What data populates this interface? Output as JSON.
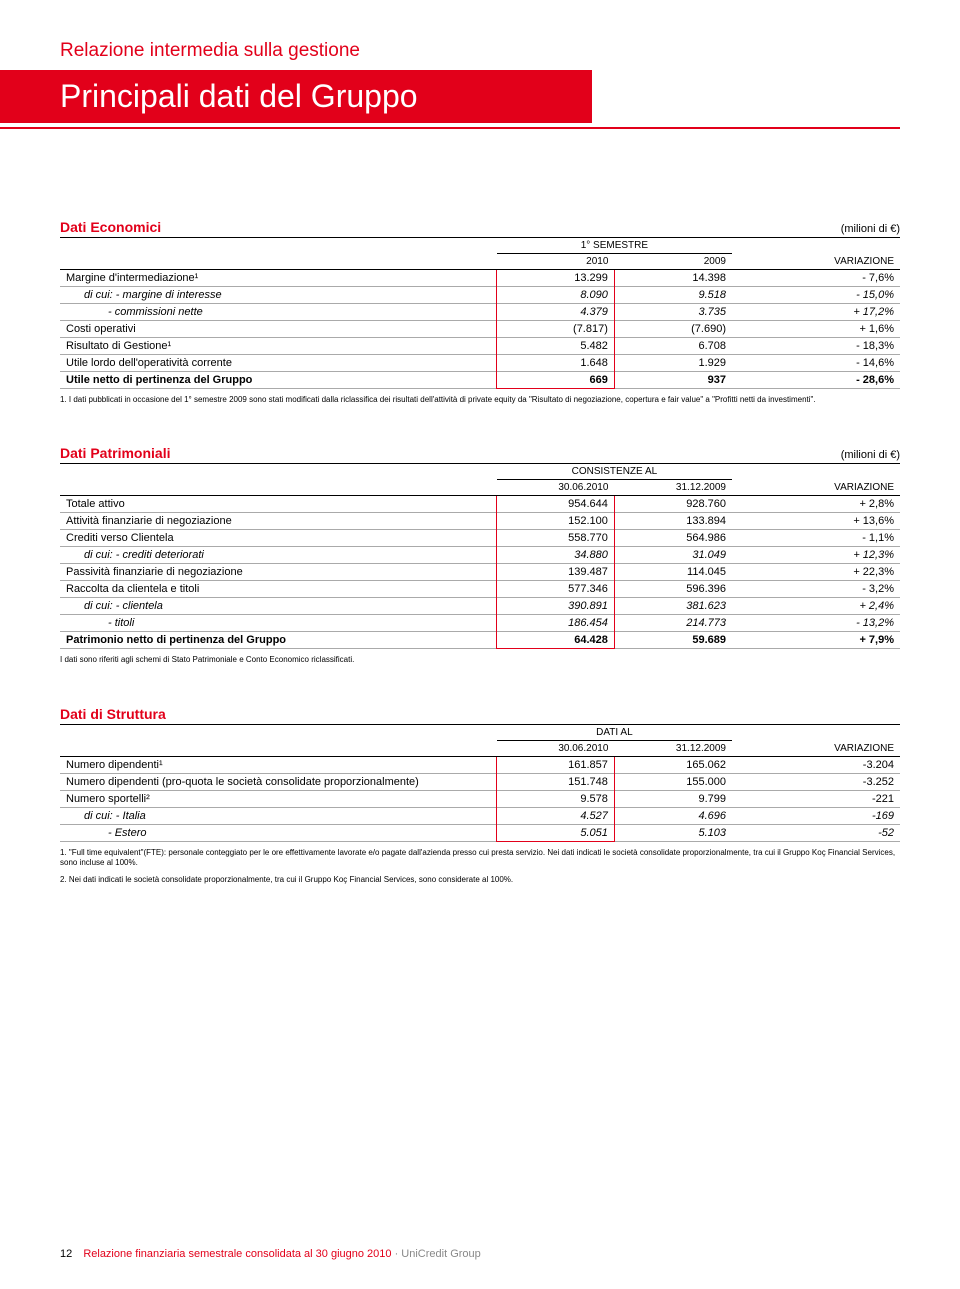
{
  "header": {
    "report_type": "Relazione intermedia sulla gestione",
    "main_title": "Principali dati del Gruppo"
  },
  "tables": {
    "economici": {
      "title": "Dati Economici",
      "unit": "(milioni di €)",
      "super_header": "1° SEMESTRE",
      "cols": [
        "2010",
        "2009",
        "VARIAZIONE"
      ],
      "rows": [
        {
          "label": "Margine d'intermediazione¹",
          "v": [
            "13.299",
            "14.398",
            "- 7,6%"
          ],
          "box": "first"
        },
        {
          "label": "di cui: - margine di interesse",
          "v": [
            "8.090",
            "9.518",
            "- 15,0%"
          ],
          "italic": true,
          "indent": 1
        },
        {
          "label": "- commissioni nette",
          "v": [
            "4.379",
            "3.735",
            "+ 17,2%"
          ],
          "italic": true,
          "indent": 2
        },
        {
          "label": "Costi operativi",
          "v": [
            "(7.817)",
            "(7.690)",
            "+ 1,6%"
          ]
        },
        {
          "label": "Risultato di Gestione¹",
          "v": [
            "5.482",
            "6.708",
            "- 18,3%"
          ]
        },
        {
          "label": "Utile lordo dell'operatività corrente",
          "v": [
            "1.648",
            "1.929",
            "- 14,6%"
          ]
        },
        {
          "label": "Utile netto di pertinenza del Gruppo",
          "v": [
            "669",
            "937",
            "- 28,6%"
          ],
          "bold": true,
          "box": "last"
        }
      ],
      "footnote": "1. I dati pubblicati in occasione del 1° semestre 2009 sono stati modificati dalla riclassifica dei risultati dell'attività di private equity da \"Risultato di negoziazione, copertura e fair value\" a \"Profitti netti da investimenti\"."
    },
    "patrimoniali": {
      "title": "Dati Patrimoniali",
      "unit": "(milioni di €)",
      "super_header": "CONSISTENZE AL",
      "cols": [
        "30.06.2010",
        "31.12.2009",
        "VARIAZIONE"
      ],
      "rows": [
        {
          "label": "Totale attivo",
          "v": [
            "954.644",
            "928.760",
            "+ 2,8%"
          ],
          "box": "first"
        },
        {
          "label": "Attività finanziarie di negoziazione",
          "v": [
            "152.100",
            "133.894",
            "+ 13,6%"
          ]
        },
        {
          "label": "Crediti verso Clientela",
          "v": [
            "558.770",
            "564.986",
            "- 1,1%"
          ]
        },
        {
          "label": "di cui: - crediti deteriorati",
          "v": [
            "34.880",
            "31.049",
            "+ 12,3%"
          ],
          "italic": true,
          "indent": 1
        },
        {
          "label": "Passività finanziarie di negoziazione",
          "v": [
            "139.487",
            "114.045",
            "+ 22,3%"
          ]
        },
        {
          "label": "Raccolta da clientela e titoli",
          "v": [
            "577.346",
            "596.396",
            "- 3,2%"
          ]
        },
        {
          "label": "di cui: - clientela",
          "v": [
            "390.891",
            "381.623",
            "+ 2,4%"
          ],
          "italic": true,
          "indent": 1
        },
        {
          "label": "- titoli",
          "v": [
            "186.454",
            "214.773",
            "- 13,2%"
          ],
          "italic": true,
          "indent": 2
        },
        {
          "label": "Patrimonio netto di pertinenza del Gruppo",
          "v": [
            "64.428",
            "59.689",
            "+ 7,9%"
          ],
          "bold": true,
          "box": "last"
        }
      ],
      "footnote": "I dati sono riferiti agli schemi di Stato Patrimoniale e Conto Economico riclassificati."
    },
    "struttura": {
      "title": "Dati di Struttura",
      "unit": "",
      "super_header": "DATI AL",
      "cols": [
        "30.06.2010",
        "31.12.2009",
        "VARIAZIONE"
      ],
      "rows": [
        {
          "label": "Numero dipendenti¹",
          "v": [
            "161.857",
            "165.062",
            "-3.204"
          ],
          "box": "first"
        },
        {
          "label": "Numero dipendenti (pro-quota le società consolidate proporzionalmente)",
          "v": [
            "151.748",
            "155.000",
            "-3.252"
          ]
        },
        {
          "label": "Numero sportelli²",
          "v": [
            "9.578",
            "9.799",
            "-221"
          ]
        },
        {
          "label": "di cui: - Italia",
          "v": [
            "4.527",
            "4.696",
            "-169"
          ],
          "italic": true,
          "indent": 1
        },
        {
          "label": "- Estero",
          "v": [
            "5.051",
            "5.103",
            "-52"
          ],
          "italic": true,
          "indent": 2,
          "box": "last"
        }
      ],
      "footnotes": [
        "1. \"Full time equivalent\"(FTE): personale conteggiato per le ore effettivamente lavorate e/o pagate dall'azienda presso cui presta servizio. Nei dati indicati le società consolidate proporzionalmente, tra cui il Gruppo Koç Financial Services, sono incluse al 100%.",
        "2. Nei dati indicati le società consolidate proporzionalmente, tra cui il Gruppo Koç Financial Services, sono considerate al 100%."
      ]
    }
  },
  "footer": {
    "page": "12",
    "doc": "Relazione finanziaria semestrale consolidata al 30 giugno 2010",
    "group": "· UniCredit Group"
  },
  "style": {
    "accent": "#e2001a",
    "col_widths": {
      "label": "52%",
      "c1": "14%",
      "c2": "14%",
      "c3": "20%"
    }
  }
}
